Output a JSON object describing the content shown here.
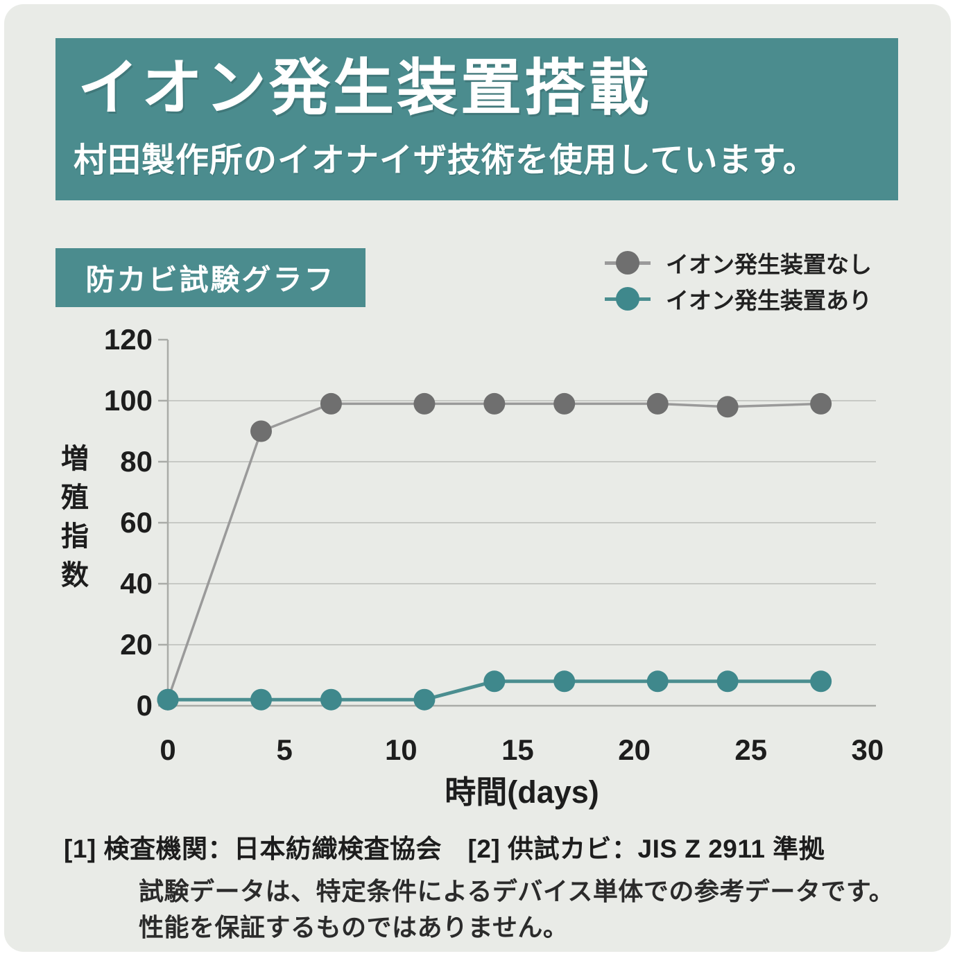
{
  "page": {
    "background_color": "#e9ebe7",
    "accent_color": "#4b8c8e"
  },
  "header": {
    "title": "イオン発生装置搭載",
    "subtitle": "村田製作所のイオナイザ技術を使用しています。"
  },
  "chart_section": {
    "badge": "防カビ試験グラフ"
  },
  "legend": [
    {
      "label": "イオン発生装置なし",
      "color": "#6f6f6f",
      "line_color": "#9a9a9a"
    },
    {
      "label": "イオン発生装置あり",
      "color": "#3f888c",
      "line_color": "#4b8e90"
    }
  ],
  "chart_data": {
    "type": "line",
    "title": "防カビ試験グラフ",
    "xlabel": "時間(days)",
    "ylabel": "増殖指数",
    "x": [
      0,
      4,
      7,
      11,
      14,
      17,
      21,
      24,
      28
    ],
    "series": [
      {
        "name": "イオン発生装置なし",
        "color": "#6f6f6f",
        "line_color": "#9a9a9a",
        "values": [
          2,
          90,
          99,
          99,
          99,
          99,
          99,
          98,
          99
        ]
      },
      {
        "name": "イオン発生装置あり",
        "color": "#3f888c",
        "line_color": "#4b8e90",
        "values": [
          2,
          2,
          2,
          2,
          8,
          8,
          8,
          8,
          8
        ]
      }
    ],
    "xlim": [
      0,
      30
    ],
    "ylim": [
      0,
      120
    ],
    "xticks": [
      0,
      5,
      10,
      15,
      20,
      25,
      30
    ],
    "yticks": [
      0,
      20,
      40,
      60,
      80,
      100,
      120
    ],
    "grid": "horizontal",
    "legend_position": "top-right"
  },
  "footnotes": {
    "line1": "[1] 検査機関：日本紡織検査協会　[2] 供試カビ：JIS Z 2911 準拠",
    "line2": "試験データは、特定条件によるデバイス単体での参考データです。",
    "line3": "性能を保証するものではありません。"
  }
}
